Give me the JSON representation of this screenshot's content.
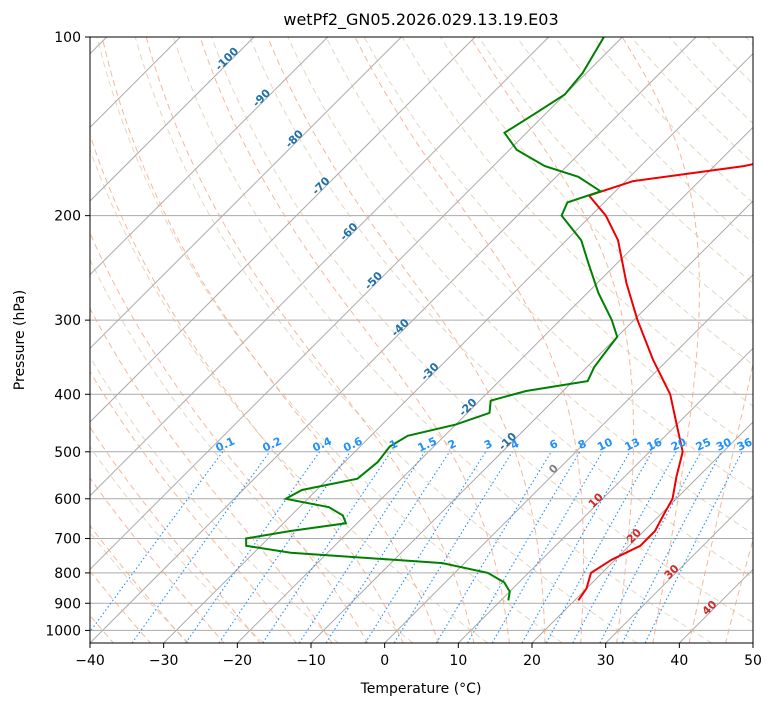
{
  "chart_data": {
    "type": "skew-t",
    "title": "wetPf2_GN05.2026.029.13.19.E03",
    "xlabel": "Temperature (°C)",
    "ylabel": "Pressure (hPa)",
    "xlim": [
      -40,
      50
    ],
    "ylim_hpa": [
      1050,
      100
    ],
    "x_ticks": [
      -40,
      -30,
      -20,
      -10,
      0,
      10,
      20,
      30,
      40,
      50
    ],
    "x_tick_labels": [
      "−40",
      "−30",
      "−20",
      "−10",
      "0",
      "10",
      "20",
      "30",
      "40",
      "50"
    ],
    "p_ticks": [
      100,
      200,
      300,
      400,
      500,
      600,
      700,
      800,
      900,
      1000
    ],
    "p_tick_labels": [
      "100",
      "200",
      "300",
      "400",
      "500",
      "600",
      "700",
      "800",
      "900",
      "1000"
    ],
    "colors": {
      "temperature": "#ee0000",
      "dewpoint": "#008000",
      "isotherm": "#aaaaaa",
      "isobar": "#aaaaaa",
      "dry_adiabat": "#d2b48c",
      "moist_adiabat": "#f4a582",
      "mixing_ratio": "#1e90ff",
      "isotherm_label": "#1f6fa8",
      "zero_label": "#808080",
      "positive_label": "#d62728"
    },
    "temperature_profile": [
      {
        "p": 890,
        "t": 20.5
      },
      {
        "p": 850,
        "t": 20.0
      },
      {
        "p": 800,
        "t": 18.5
      },
      {
        "p": 760,
        "t": 19.5
      },
      {
        "p": 720,
        "t": 21.5
      },
      {
        "p": 680,
        "t": 21.5
      },
      {
        "p": 640,
        "t": 20.5
      },
      {
        "p": 600,
        "t": 19.5
      },
      {
        "p": 550,
        "t": 17.0
      },
      {
        "p": 500,
        "t": 14.5
      },
      {
        "p": 450,
        "t": 10.0
      },
      {
        "p": 400,
        "t": 5.0
      },
      {
        "p": 350,
        "t": -2.0
      },
      {
        "p": 300,
        "t": -9.5
      },
      {
        "p": 260,
        "t": -16.0
      },
      {
        "p": 220,
        "t": -23.0
      },
      {
        "p": 200,
        "t": -28.0
      },
      {
        "p": 185,
        "t": -33.0
      },
      {
        "p": 175,
        "t": -29.0
      },
      {
        "p": 165,
        "t": -16.0
      },
      {
        "p": 155,
        "t": -8.0
      },
      {
        "p": 145,
        "t": -8.5
      },
      {
        "p": 135,
        "t": -11.0
      },
      {
        "p": 125,
        "t": -13.5
      },
      {
        "p": 115,
        "t": -14.5
      },
      {
        "p": 105,
        "t": -16.5
      },
      {
        "p": 100,
        "t": -17.5
      }
    ],
    "dewpoint_profile": [
      {
        "p": 890,
        "t": 11.0
      },
      {
        "p": 860,
        "t": 10.0
      },
      {
        "p": 830,
        "t": 8.0
      },
      {
        "p": 800,
        "t": 4.5
      },
      {
        "p": 770,
        "t": -3.0
      },
      {
        "p": 740,
        "t": -25.0
      },
      {
        "p": 720,
        "t": -32.0
      },
      {
        "p": 700,
        "t": -33.0
      },
      {
        "p": 680,
        "t": -28.0
      },
      {
        "p": 660,
        "t": -21.5
      },
      {
        "p": 640,
        "t": -23.0
      },
      {
        "p": 620,
        "t": -26.0
      },
      {
        "p": 600,
        "t": -33.0
      },
      {
        "p": 580,
        "t": -32.0
      },
      {
        "p": 555,
        "t": -26.0
      },
      {
        "p": 520,
        "t": -25.5
      },
      {
        "p": 490,
        "t": -26.0
      },
      {
        "p": 470,
        "t": -25.0
      },
      {
        "p": 450,
        "t": -20.0
      },
      {
        "p": 430,
        "t": -17.0
      },
      {
        "p": 410,
        "t": -18.5
      },
      {
        "p": 395,
        "t": -15.0
      },
      {
        "p": 380,
        "t": -8.0
      },
      {
        "p": 360,
        "t": -9.0
      },
      {
        "p": 340,
        "t": -9.5
      },
      {
        "p": 320,
        "t": -10.0
      },
      {
        "p": 300,
        "t": -13.0
      },
      {
        "p": 270,
        "t": -18.5
      },
      {
        "p": 240,
        "t": -24.0
      },
      {
        "p": 220,
        "t": -28.0
      },
      {
        "p": 200,
        "t": -34.0
      },
      {
        "p": 190,
        "t": -35.0
      },
      {
        "p": 182,
        "t": -32.0
      },
      {
        "p": 172,
        "t": -37.0
      },
      {
        "p": 165,
        "t": -43.0
      },
      {
        "p": 155,
        "t": -49.0
      },
      {
        "p": 145,
        "t": -53.0
      },
      {
        "p": 135,
        "t": -51.5
      },
      {
        "p": 125,
        "t": -50.0
      },
      {
        "p": 115,
        "t": -50.5
      },
      {
        "p": 100,
        "t": -52.5
      }
    ],
    "isotherm_labels": [
      {
        "t": -100,
        "p": 110,
        "text": "-100"
      },
      {
        "t": -90,
        "p": 128,
        "text": "-90"
      },
      {
        "t": -80,
        "p": 150,
        "text": "-80"
      },
      {
        "t": -70,
        "p": 180,
        "text": "-70"
      },
      {
        "t": -60,
        "p": 215,
        "text": "-60"
      },
      {
        "t": -50,
        "p": 260,
        "text": "-50"
      },
      {
        "t": -40,
        "p": 312,
        "text": "-40"
      },
      {
        "t": -30,
        "p": 370,
        "text": "-30"
      },
      {
        "t": -20,
        "p": 425,
        "text": "-20"
      },
      {
        "t": -10,
        "p": 485,
        "text": "-10"
      }
    ],
    "adiabat_labels": [
      {
        "t": 0,
        "p": 540,
        "text": "0",
        "kind": "zero"
      },
      {
        "t": 10,
        "p": 610,
        "text": "10",
        "kind": "positive"
      },
      {
        "t": 20,
        "p": 700,
        "text": "20",
        "kind": "positive"
      },
      {
        "t": 30,
        "p": 805,
        "text": "30",
        "kind": "positive"
      },
      {
        "t": 40,
        "p": 925,
        "text": "40",
        "kind": "positive"
      }
    ],
    "mixing_ratios": [
      0.1,
      0.2,
      0.4,
      0.6,
      1,
      1.5,
      2,
      3,
      4,
      6,
      8,
      10,
      13,
      16,
      20,
      25,
      30,
      36
    ],
    "mixing_ratio_labels": [
      "0.1",
      "0.2",
      "0.4",
      "0.6",
      "1",
      "1.5",
      "2",
      "3",
      "4",
      "6",
      "8",
      "10",
      "13",
      "16",
      "20",
      "25",
      "30",
      "36"
    ]
  }
}
